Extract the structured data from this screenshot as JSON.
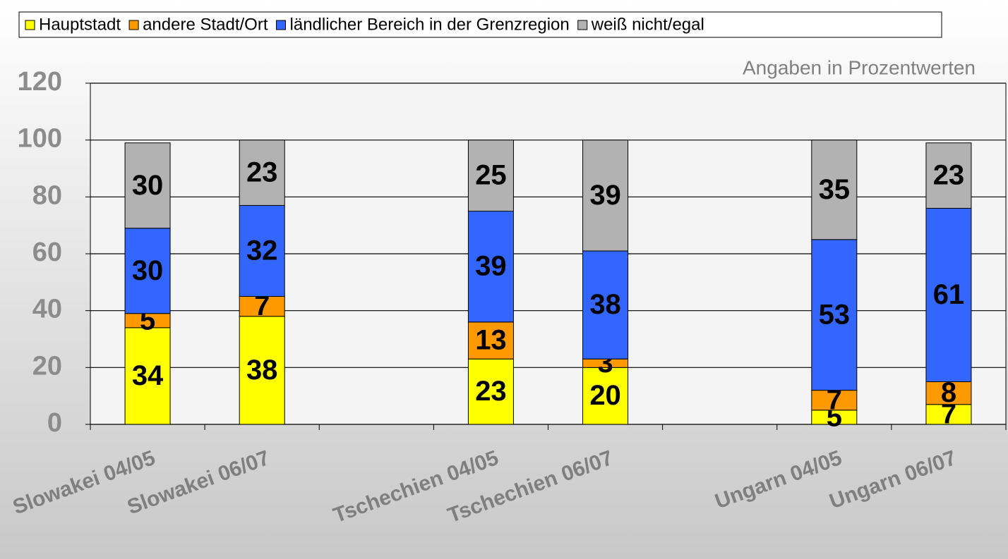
{
  "chart_data": {
    "type": "stacked_bar",
    "annotation": "Angaben in Prozentwerten",
    "categories": [
      "Slowakei 04/05",
      "Slowakei 06/07",
      null,
      "Tschechien 04/05",
      "Tschechien 06/07",
      null,
      "Ungarn 04/05",
      "Ungarn 06/07"
    ],
    "series": [
      {
        "name": "Hauptstadt",
        "color": "#ffff00",
        "values": [
          34,
          38,
          null,
          23,
          20,
          null,
          5,
          7
        ]
      },
      {
        "name": "andere Stadt/Ort",
        "color": "#ff9900",
        "values": [
          5,
          7,
          null,
          13,
          3,
          null,
          7,
          8
        ]
      },
      {
        "name": "ländlicher Bereich in der Grenzregion",
        "color": "#3366ff",
        "values": [
          30,
          32,
          null,
          39,
          38,
          null,
          53,
          61
        ]
      },
      {
        "name": "weiß nicht/egal",
        "color": "#b2b2b2",
        "values": [
          30,
          23,
          null,
          25,
          39,
          null,
          35,
          23
        ]
      }
    ],
    "ylim": [
      0,
      120
    ],
    "yticks": [
      0,
      20,
      40,
      60,
      80,
      100,
      120
    ],
    "grid": true,
    "legend": "top"
  }
}
